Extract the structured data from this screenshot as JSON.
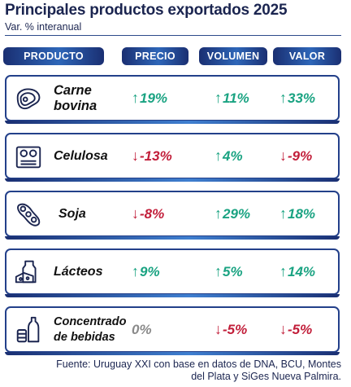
{
  "title": "Principales productos exportados 2025",
  "subtitle": "Var. % interanual",
  "chart_data": {
    "type": "table",
    "columns": [
      "PRODUCTO",
      "PRECIO",
      "VOLUMEN",
      "VALOR"
    ],
    "rows": [
      {
        "name_lines": [
          "Carne",
          "bovina"
        ],
        "icon": "steak-icon",
        "precio": {
          "text": "19%",
          "dir": "up"
        },
        "volumen": {
          "text": "11%",
          "dir": "up"
        },
        "valor": {
          "text": "33%",
          "dir": "up"
        }
      },
      {
        "name_lines": [
          "Celulosa"
        ],
        "icon": "pulp-rolls-icon",
        "precio": {
          "text": "-13%",
          "dir": "down"
        },
        "volumen": {
          "text": "4%",
          "dir": "up"
        },
        "valor": {
          "text": "-9%",
          "dir": "down"
        }
      },
      {
        "name_lines": [
          "Soja"
        ],
        "icon": "soybean-icon",
        "precio": {
          "text": "-8%",
          "dir": "down"
        },
        "volumen": {
          "text": "29%",
          "dir": "up"
        },
        "valor": {
          "text": "18%",
          "dir": "up"
        }
      },
      {
        "name_lines": [
          "Lácteos"
        ],
        "icon": "dairy-icon",
        "precio": {
          "text": "9%",
          "dir": "up"
        },
        "volumen": {
          "text": "5%",
          "dir": "up"
        },
        "valor": {
          "text": "14%",
          "dir": "up"
        }
      },
      {
        "name_lines": [
          "Concentrado",
          "de bebidas"
        ],
        "icon": "beverages-icon",
        "precio": {
          "text": "0%",
          "dir": "flat"
        },
        "volumen": {
          "text": "-5%",
          "dir": "down"
        },
        "valor": {
          "text": "-5%",
          "dir": "down"
        }
      }
    ]
  },
  "colors": {
    "up": "#1aa382",
    "down": "#c21e3a",
    "flat": "#8a8a8a",
    "accent": "#23408a"
  },
  "footer_lines": [
    "Fuente: Uruguay XXI con base en datos de DNA, BCU, Montes",
    "del Plata y SiGes Nueva Palmira."
  ]
}
